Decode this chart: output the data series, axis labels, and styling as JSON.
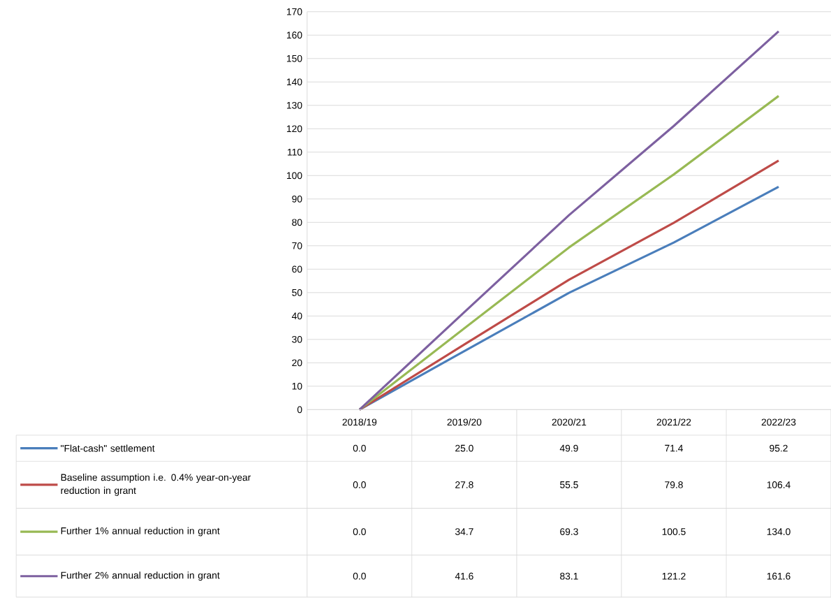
{
  "chart_data": {
    "type": "line",
    "categories": [
      "2018/19",
      "2019/20",
      "2020/21",
      "2021/22",
      "2022/23"
    ],
    "series": [
      {
        "name": "\"Flat-cash\" settlement",
        "color": "#4a7ebb",
        "values": [
          0.0,
          25.0,
          49.9,
          71.4,
          95.2
        ],
        "value_labels": [
          "0.0",
          "25.0",
          "49.9",
          "71.4",
          "95.2"
        ]
      },
      {
        "name": "Baseline assumption i.e. 0.4% year-on-year reduction in grant",
        "color": "#be4b48",
        "values": [
          0.0,
          27.8,
          55.5,
          79.8,
          106.4
        ],
        "value_labels": [
          "0.0",
          "27.8",
          "55.5",
          "79.8",
          "106.4"
        ]
      },
      {
        "name": "Further 1% annual reduction in grant",
        "color": "#98b954",
        "values": [
          0.0,
          34.7,
          69.3,
          100.5,
          134.0
        ],
        "value_labels": [
          "0.0",
          "34.7",
          "69.3",
          "100.5",
          "134.0"
        ]
      },
      {
        "name": "Further 2% annual reduction in grant",
        "color": "#7d60a0",
        "values": [
          0.0,
          41.6,
          83.1,
          121.2,
          161.6
        ],
        "value_labels": [
          "0.0",
          "41.6",
          "83.1",
          "121.2",
          "161.6"
        ]
      }
    ],
    "ylim": [
      0,
      170
    ],
    "yticks": [
      0,
      10,
      20,
      30,
      40,
      50,
      60,
      70,
      80,
      90,
      100,
      110,
      120,
      130,
      140,
      150,
      160,
      170
    ],
    "grid": "y",
    "legend": "bottom"
  }
}
